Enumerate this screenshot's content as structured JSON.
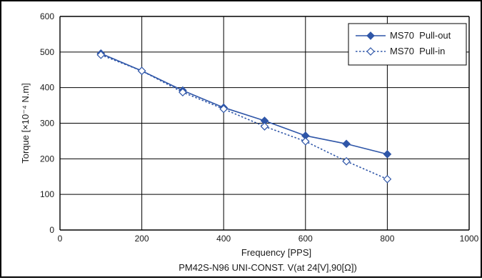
{
  "chart_data": {
    "type": "line",
    "title": "",
    "caption": "PM42S-N96 UNI-CONST. V(at 24[V],90[Ω])",
    "xlabel": "Frequency [PPS]",
    "ylabel": "Torque [×10⁻⁴ N.m]",
    "xlim": [
      0,
      1000
    ],
    "ylim": [
      0,
      600
    ],
    "xticks": [
      "0",
      "200",
      "400",
      "600",
      "800",
      "1000"
    ],
    "yticks": [
      "0",
      "100",
      "200",
      "300",
      "400",
      "500",
      "600"
    ],
    "grid": true,
    "legend_position": "top-right",
    "series": [
      {
        "name": "MS70  Pull-out",
        "style": "solid",
        "marker": "filled-diamond",
        "color": "#2f56a8",
        "x": [
          100,
          200,
          300,
          400,
          500,
          600,
          700,
          800
        ],
        "values": [
          496,
          447,
          392,
          344,
          307,
          265,
          242,
          213
        ]
      },
      {
        "name": "MS70  Pull-in",
        "style": "dotted",
        "marker": "open-diamond",
        "color": "#2f56a8",
        "x": [
          100,
          200,
          300,
          400,
          500,
          600,
          700,
          800
        ],
        "values": [
          492,
          447,
          387,
          340,
          291,
          249,
          193,
          143
        ]
      }
    ]
  }
}
